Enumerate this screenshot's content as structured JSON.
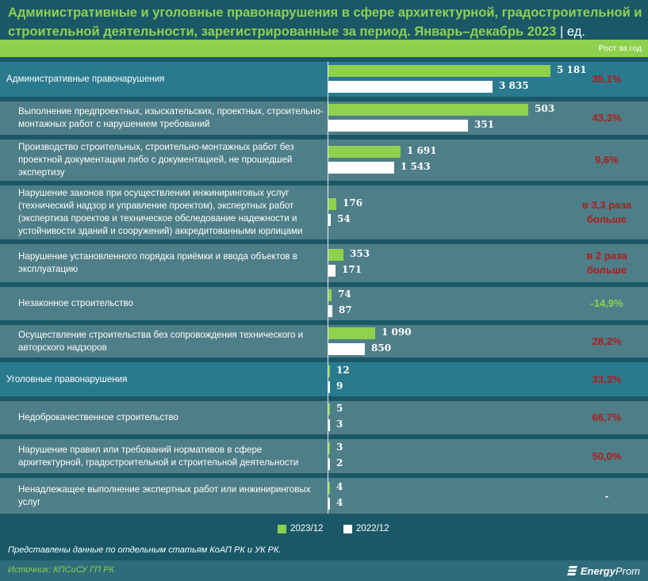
{
  "title": {
    "main": "Административные и уголовные правонарушения в сфере архитектурной, градостроительной и строительной деятельности, зарегистрированные за период. Январь–декабрь 2023",
    "separator": " | ",
    "unit": "ед."
  },
  "growth_header": "Рост за год",
  "colors": {
    "current": "#8ed14f",
    "previous": "#ffffff",
    "growth_up": "#b01c1c",
    "growth_down": "#8ed14f",
    "growth_neutral": "#ffffff"
  },
  "legend": [
    {
      "label": "2023/12",
      "color": "#8ed14f"
    },
    {
      "label": "2022/12",
      "color": "#ffffff"
    }
  ],
  "note": "Представлены данные по отдельным статьям КоАП РК и УК РК.",
  "source": "Источник: КПСиСУ ГП РК",
  "logo": {
    "bold": "Energy",
    "light": "Prom"
  },
  "chart_data": {
    "type": "bar",
    "orientation": "horizontal",
    "title": "Административные и уголовные правонарушения в сфере архитектурной, градостроительной и строительной деятельности, зарегистрированные за период. Январь–декабрь 2023 | ед.",
    "xlabel": "",
    "ylabel": "",
    "legend_position": "bottom-center",
    "grid": false,
    "series": [
      {
        "name": "2023/12",
        "values": [
          5181,
          503,
          1691,
          176,
          353,
          74,
          1090,
          12,
          5,
          3,
          4
        ]
      },
      {
        "name": "2022/12",
        "values": [
          3835,
          351,
          1543,
          54,
          171,
          87,
          850,
          9,
          3,
          2,
          4
        ]
      }
    ],
    "categories": [
      "Административные правонарушения",
      "Выполнение предпроектных, изыскательских, проектных, строительно-монтажных работ с нарушением требований",
      "Производство строительных, строительно-монтажных работ без проектной документации либо с документацией, не прошедшей экспертизу",
      "Нарушение законов при осуществлении инжиниринговых услуг (технический надзор и управление проектом), экспертных работ (экспертиза проектов и техническое обследование надежности и устойчивости зданий и сооружений) аккредитованными юрлицами",
      "Нарушение установленного порядка приёмки и ввода объектов в эксплуатацию",
      "Незаконное строительство",
      "Осуществление строительства без сопровождения технического и авторского надзоров",
      "Уголовные правонарушения",
      "Недоброкачественное строительство",
      "Нарушение правил или требований нормативов в сфере архитектурной, градостроительной и строительной деятельности",
      "Ненадлежащее выполнение экспертных работ или инжиниринговых услуг"
    ],
    "rows": [
      {
        "label": "Административные правонарушения",
        "kind": "group",
        "cur": 5181,
        "prev": 3835,
        "cur_label": "5 181",
        "prev_label": "3 835",
        "growth": "35,1%",
        "trend": "up"
      },
      {
        "label": "Выполнение предпроектных, изыскательских, проектных, строительно-монтажных работ с нарушением требований",
        "kind": "sub",
        "cur": 503,
        "prev": 351,
        "cur_label": "503",
        "prev_label": "351",
        "growth": "43,3%",
        "trend": "up"
      },
      {
        "label": "Производство строительных, строительно-монтажных работ без проектной документации либо с документацией, не прошедшей экспертизу",
        "kind": "sub",
        "cur": 1691,
        "prev": 1543,
        "cur_label": "1 691",
        "prev_label": "1 543",
        "growth": "9,6%",
        "trend": "up"
      },
      {
        "label": "Нарушение законов при осуществлении инжиниринговых услуг (технический надзор и управление проектом), экспертных работ (экспертиза проектов и техническое обследование надежности и устойчивости зданий и сооружений) аккредитованными юрлицами",
        "kind": "sub",
        "cur": 176,
        "prev": 54,
        "cur_label": "176",
        "prev_label": "54",
        "growth": "в 3,3 раза больше",
        "trend": "up"
      },
      {
        "label": "Нарушение установленного порядка приёмки и ввода объектов в эксплуатацию",
        "kind": "sub",
        "cur": 353,
        "prev": 171,
        "cur_label": "353",
        "prev_label": "171",
        "growth": "в 2 раза больше",
        "trend": "up"
      },
      {
        "label": "Незаконное строительство",
        "kind": "sub",
        "cur": 74,
        "prev": 87,
        "cur_label": "74",
        "prev_label": "87",
        "growth": "-14,9%",
        "trend": "down"
      },
      {
        "label": "Осуществление строительства без сопровождения технического и авторского надзоров",
        "kind": "sub",
        "cur": 1090,
        "prev": 850,
        "cur_label": "1 090",
        "prev_label": "850",
        "growth": "28,2%",
        "trend": "up"
      },
      {
        "label": "Уголовные правонарушения",
        "kind": "group",
        "cur": 12,
        "prev": 9,
        "cur_label": "12",
        "prev_label": "9",
        "growth": "33,3%",
        "trend": "up"
      },
      {
        "label": "Недоброкачественное строительство",
        "kind": "sub",
        "cur": 5,
        "prev": 3,
        "cur_label": "5",
        "prev_label": "3",
        "growth": "66,7%",
        "trend": "up"
      },
      {
        "label": "Нарушение правил или требований нормативов в сфере архитектурной, градостроительной и строительной деятельности",
        "kind": "sub",
        "cur": 3,
        "prev": 2,
        "cur_label": "3",
        "prev_label": "2",
        "growth": "50,0%",
        "trend": "up"
      },
      {
        "label": "Ненадлежащее выполнение экспертных работ или инжиниринговых услуг",
        "kind": "sub",
        "cur": 4,
        "prev": 4,
        "cur_label": "4",
        "prev_label": "4",
        "growth": "-",
        "trend": "neutral"
      }
    ]
  }
}
